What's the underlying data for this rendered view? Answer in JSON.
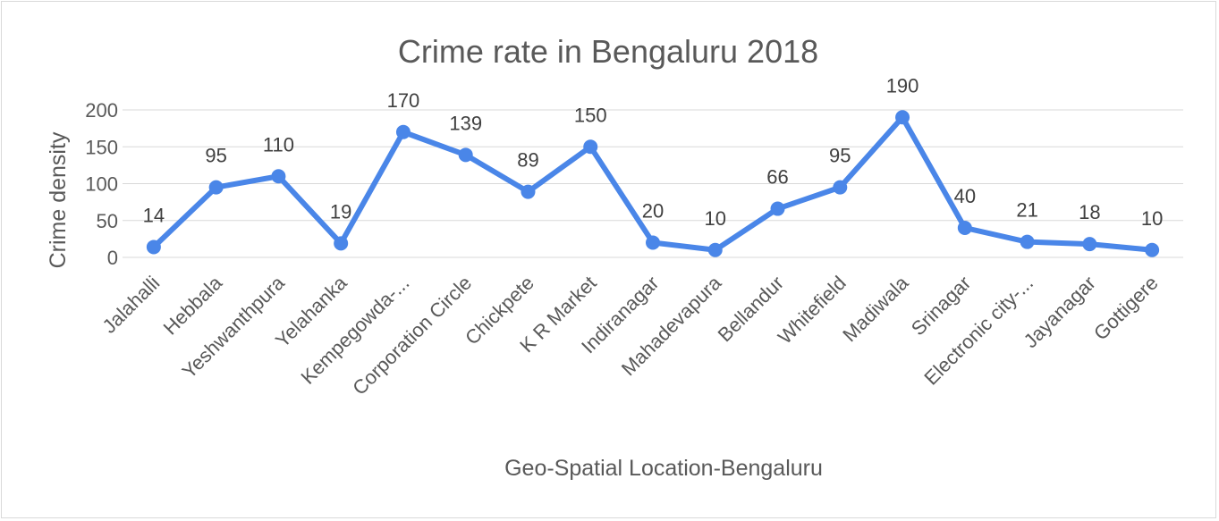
{
  "chart_data": {
    "type": "line",
    "title": "Crime rate in Bengaluru 2018",
    "xlabel": "Geo-Spatial Location-Bengaluru",
    "ylabel": "Crime density",
    "ylim": [
      0,
      200
    ],
    "yticks": [
      0,
      50,
      100,
      150,
      200
    ],
    "grid": true,
    "legend": "none",
    "categories": [
      "Jalahalli",
      "Hebbala",
      "Yeshwanthpura",
      "Yelahanka",
      "Kempegowda-...",
      "Corporation  Circle",
      "Chickpete",
      "K R Market",
      "Indiranagar",
      "Mahadevapura",
      "Bellandur",
      "Whitefield",
      "Madiwala",
      "Srinagar",
      "Electronic city-...",
      "Jayanagar",
      "Gottigere"
    ],
    "series": [
      {
        "values": [
          14,
          95,
          110,
          19,
          170,
          139,
          89,
          150,
          20,
          10,
          66,
          95,
          190,
          40,
          21,
          18,
          10
        ]
      }
    ],
    "colors": {
      "series": "#4a86e8",
      "grid": "#d9d9d9",
      "text": "#595959"
    }
  }
}
